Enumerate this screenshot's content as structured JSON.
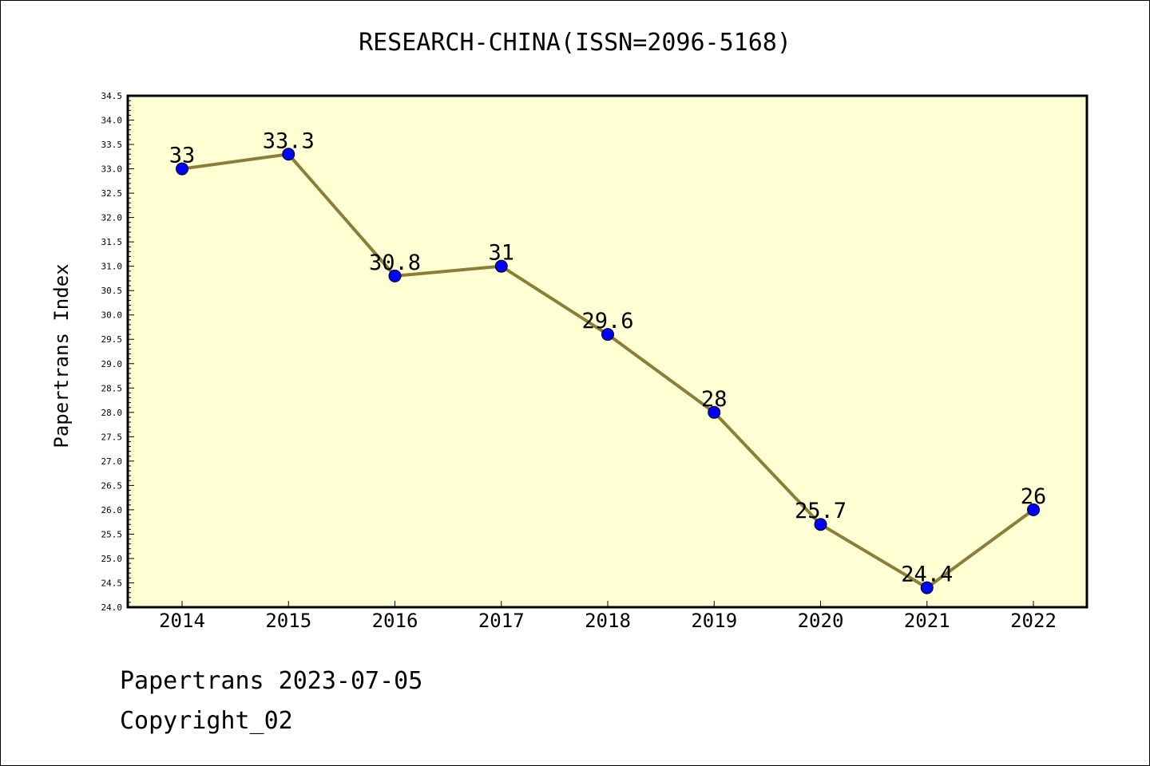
{
  "chart_data": {
    "type": "line",
    "title": "RESEARCH-CHINA(ISSN=2096-5168)",
    "xlabel": "",
    "ylabel": "Papertrans Index",
    "categories": [
      "2014",
      "2015",
      "2016",
      "2017",
      "2018",
      "2019",
      "2020",
      "2021",
      "2022"
    ],
    "series": [
      {
        "values": [
          33,
          33.3,
          30.8,
          31,
          29.6,
          28,
          25.7,
          24.4,
          26
        ],
        "labels": [
          "33",
          "33.3",
          "30.8",
          "31",
          "29.6",
          "28",
          "25.7",
          "24.4",
          "26"
        ]
      }
    ],
    "ylim": [
      24.0,
      34.5
    ],
    "yticks": [
      "24.0",
      "24.5",
      "25.0",
      "25.5",
      "26.0",
      "26.5",
      "27.0",
      "27.5",
      "28.0",
      "28.5",
      "29.0",
      "29.5",
      "30.0",
      "30.5",
      "31.0",
      "31.5",
      "32.0",
      "32.5",
      "33.0",
      "33.5",
      "34.0",
      "34.5"
    ],
    "grid": false,
    "legend": "none",
    "colors": {
      "plot_background": "#ffffd4",
      "line": "#8b7e3a",
      "marker": "#0000ff"
    }
  },
  "footer": {
    "line1": "Papertrans 2023-07-05",
    "line2": "Copyright_02"
  }
}
